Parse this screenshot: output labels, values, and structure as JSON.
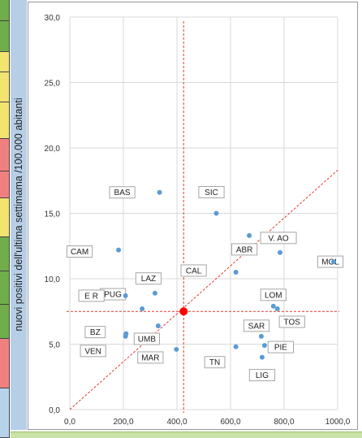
{
  "chart_data": {
    "type": "scatter",
    "title": "",
    "xlabel": "",
    "ylabel": "nuovi positivi dell'ultima settimama /100.000 abitanti",
    "xlim": [
      0,
      1000
    ],
    "ylim": [
      0,
      30
    ],
    "xticks": [
      "0,0",
      "200,0",
      "400,0",
      "600,0",
      "800,0",
      "1000,0"
    ],
    "yticks": [
      "0,0",
      "5,0",
      "10,0",
      "15,0",
      "20,0",
      "25,0",
      "30,0"
    ],
    "grid": true,
    "points": [
      {
        "label": "BAS",
        "x": 335,
        "y": 16.6
      },
      {
        "label": "SIC",
        "x": 547,
        "y": 15.0
      },
      {
        "label": "ABR",
        "x": 670,
        "y": 13.3
      },
      {
        "label": "V. AO",
        "x": 785,
        "y": 12.0
      },
      {
        "label": "MOL",
        "x": 985,
        "y": 11.3
      },
      {
        "label": "CAM",
        "x": 182,
        "y": 12.2
      },
      {
        "label": "CAL",
        "x": 620,
        "y": 10.5
      },
      {
        "label": "LAZ",
        "x": 318,
        "y": 8.9
      },
      {
        "label": "PUG",
        "x": 270,
        "y": 7.7
      },
      {
        "label": "E R",
        "x": 208,
        "y": 8.7
      },
      {
        "label": "LOM",
        "x": 760,
        "y": 7.9
      },
      {
        "label": "TOS",
        "x": 775,
        "y": 7.7
      },
      {
        "label": "BZ",
        "x": 210,
        "y": 5.8
      },
      {
        "label": "UMB",
        "x": 330,
        "y": 6.4
      },
      {
        "label": "VEN",
        "x": 208,
        "y": 5.6
      },
      {
        "label": "SAR",
        "x": 715,
        "y": 5.6
      },
      {
        "label": "PIE",
        "x": 727,
        "y": 4.9
      },
      {
        "label": "MAR",
        "x": 398,
        "y": 4.6
      },
      {
        "label": "TN",
        "x": 620,
        "y": 4.8
      },
      {
        "label": "LIG",
        "x": 718,
        "y": 4.0
      }
    ],
    "mean_point": {
      "x": 425,
      "y": 7.5
    },
    "reference_lines": {
      "vertical_x": 425,
      "horizontal_y": 7.5,
      "diagonal": [
        [
          0,
          0
        ],
        [
          1000,
          18.3
        ]
      ]
    },
    "colors": {
      "point": "#5b9bd5",
      "mean": "#ff0000",
      "reference": "#e03c31",
      "grid": "#d9d9d9"
    }
  },
  "side_strip": {
    "colors": [
      "#6fae4a",
      "#6fae4a",
      "#f2e46f",
      "#f2e46f",
      "#f2e46f",
      "#f08080",
      "#f08080",
      "#f2e46f",
      "#6fae4a",
      "#6fae4a",
      "#6fae4a",
      "#f08080",
      "#b7d3ec"
    ]
  }
}
